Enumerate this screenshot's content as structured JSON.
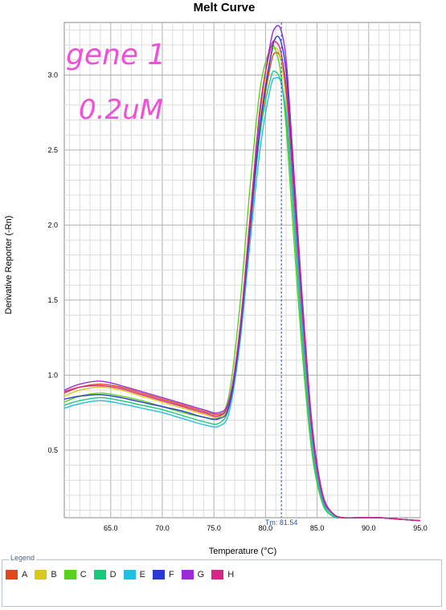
{
  "chart_data": {
    "type": "line",
    "title": "Melt Curve",
    "xlabel": "Temperature (°C)",
    "ylabel": "Derivative Reporter (-Rn)",
    "xlim": [
      60.5,
      95.0
    ],
    "ylim": [
      0.05,
      3.35
    ],
    "x_ticks": [
      65.0,
      70.0,
      75.0,
      80.0,
      85.0,
      90.0,
      95.0
    ],
    "y_ticks": [
      0.5,
      1.0,
      1.5,
      2.0,
      2.5,
      3.0
    ],
    "x_tick_labels": [
      "65.0",
      "70.0",
      "75.0",
      "80.0",
      "85.0",
      "90.0",
      "95.0"
    ],
    "y_tick_labels": [
      "0.5",
      "1.0",
      "1.5",
      "2.0",
      "2.5",
      "3.0"
    ],
    "grid": true,
    "tm_marker": {
      "x": 81.54,
      "label": "Tm: 81.54"
    },
    "annotation": {
      "line1": "gene 1",
      "line2": "0.2uM"
    },
    "x": [
      60.5,
      62.0,
      64.0,
      66.0,
      68.0,
      70.0,
      72.0,
      74.0,
      75.5,
      76.5,
      77.5,
      78.5,
      79.5,
      80.5,
      81.0,
      81.5,
      82.0,
      82.5,
      83.5,
      84.5,
      85.5,
      86.5,
      87.5,
      89.0,
      91.0,
      93.0,
      95.0
    ],
    "series": [
      {
        "name": "A",
        "color": "#e0481c",
        "values": [
          0.88,
          0.92,
          0.94,
          0.92,
          0.88,
          0.84,
          0.8,
          0.76,
          0.74,
          0.82,
          1.25,
          1.95,
          2.65,
          3.07,
          3.15,
          3.1,
          2.88,
          2.45,
          1.45,
          0.62,
          0.2,
          0.08,
          0.05,
          0.05,
          0.05,
          0.04,
          0.03
        ]
      },
      {
        "name": "B",
        "color": "#d9c81c",
        "values": [
          0.86,
          0.9,
          0.92,
          0.9,
          0.86,
          0.82,
          0.78,
          0.74,
          0.72,
          0.82,
          1.3,
          2.05,
          2.75,
          3.12,
          3.18,
          3.1,
          2.82,
          2.35,
          1.38,
          0.58,
          0.18,
          0.07,
          0.05,
          0.05,
          0.05,
          0.04,
          0.03
        ]
      },
      {
        "name": "C",
        "color": "#58d11e",
        "values": [
          0.82,
          0.86,
          0.88,
          0.86,
          0.83,
          0.79,
          0.75,
          0.72,
          0.72,
          0.88,
          1.45,
          2.25,
          2.92,
          3.18,
          3.16,
          3.0,
          2.65,
          2.15,
          1.2,
          0.48,
          0.15,
          0.06,
          0.05,
          0.05,
          0.05,
          0.04,
          0.03
        ]
      },
      {
        "name": "D",
        "color": "#19c97a",
        "values": [
          0.8,
          0.83,
          0.85,
          0.83,
          0.8,
          0.77,
          0.73,
          0.69,
          0.68,
          0.8,
          1.28,
          1.98,
          2.62,
          2.98,
          3.02,
          2.95,
          2.72,
          2.28,
          1.3,
          0.52,
          0.16,
          0.06,
          0.05,
          0.05,
          0.05,
          0.04,
          0.03
        ]
      },
      {
        "name": "E",
        "color": "#22bfe0",
        "values": [
          0.78,
          0.81,
          0.83,
          0.81,
          0.78,
          0.75,
          0.71,
          0.67,
          0.66,
          0.76,
          1.2,
          1.88,
          2.52,
          2.92,
          2.98,
          2.95,
          2.75,
          2.35,
          1.38,
          0.56,
          0.18,
          0.07,
          0.05,
          0.05,
          0.05,
          0.04,
          0.03
        ]
      },
      {
        "name": "F",
        "color": "#2a38d6",
        "values": [
          0.84,
          0.86,
          0.87,
          0.85,
          0.82,
          0.79,
          0.76,
          0.72,
          0.71,
          0.8,
          1.25,
          1.98,
          2.68,
          3.12,
          3.25,
          3.22,
          3.02,
          2.55,
          1.52,
          0.64,
          0.2,
          0.08,
          0.05,
          0.05,
          0.05,
          0.04,
          0.03
        ]
      },
      {
        "name": "G",
        "color": "#9b2ad8",
        "values": [
          0.9,
          0.94,
          0.96,
          0.93,
          0.89,
          0.85,
          0.81,
          0.77,
          0.75,
          0.84,
          1.28,
          2.02,
          2.78,
          3.22,
          3.32,
          3.3,
          3.1,
          2.62,
          1.58,
          0.68,
          0.22,
          0.08,
          0.05,
          0.05,
          0.05,
          0.04,
          0.03
        ]
      },
      {
        "name": "H",
        "color": "#d92585",
        "values": [
          0.89,
          0.92,
          0.93,
          0.91,
          0.87,
          0.83,
          0.79,
          0.75,
          0.73,
          0.83,
          1.3,
          2.05,
          2.8,
          3.18,
          3.22,
          3.15,
          2.92,
          2.48,
          1.48,
          0.62,
          0.2,
          0.08,
          0.05,
          0.05,
          0.05,
          0.04,
          0.03
        ]
      }
    ],
    "legend": {
      "title": "Legend",
      "placement": "bottom"
    }
  }
}
